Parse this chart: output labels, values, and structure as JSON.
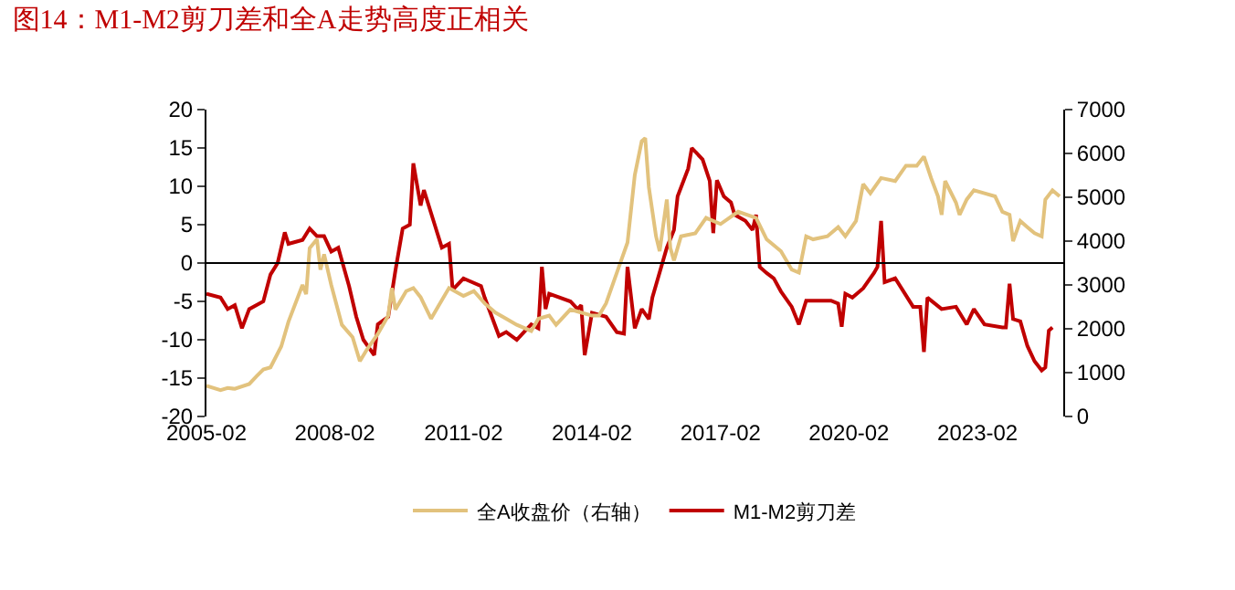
{
  "chart_data": {
    "type": "line",
    "title": "图14：M1-M2剪刀差和全A走势高度正相关",
    "xlim": [
      "2005-02",
      "2025-02"
    ],
    "xticks": [
      "2005-02",
      "2008-02",
      "2011-02",
      "2014-02",
      "2017-02",
      "2020-02",
      "2023-02"
    ],
    "ylim": [
      -20,
      20
    ],
    "yticks": [
      -20,
      -15,
      -10,
      -5,
      0,
      5,
      10,
      15,
      20
    ],
    "y2lim": [
      0,
      7000
    ],
    "y2ticks": [
      0,
      1000,
      2000,
      3000,
      4000,
      5000,
      6000,
      7000
    ],
    "legend": "bottom",
    "grid": false,
    "line_style": "solid",
    "marker": "none",
    "ref_lines": [
      {
        "axis": "y",
        "value": 0,
        "color": "#000000"
      }
    ],
    "series": [
      {
        "name": "M1-M2剪刀差",
        "color": "#c00000",
        "x": [
          "2005-02",
          "2005-06",
          "2005-08",
          "2005-10",
          "2005-12",
          "2006-02",
          "2006-06",
          "2006-08",
          "2006-10",
          "2006-12",
          "2007-01",
          "2007-05",
          "2007-07",
          "2007-09",
          "2007-11",
          "2008-01",
          "2008-03",
          "2008-06",
          "2008-08",
          "2008-10",
          "2009-01",
          "2009-02",
          "2009-05",
          "2009-07",
          "2009-09",
          "2009-11",
          "2009-12",
          "2010-02",
          "2010-03",
          "2010-06",
          "2010-08",
          "2010-10",
          "2010-11",
          "2011-02",
          "2011-07",
          "2011-08",
          "2011-12",
          "2012-02",
          "2012-05",
          "2012-07",
          "2012-09",
          "2012-11",
          "2012-12",
          "2013-01",
          "2013-02",
          "2013-08",
          "2013-10",
          "2013-11",
          "2013-12",
          "2014-02",
          "2014-06",
          "2014-09",
          "2014-11",
          "2014-12",
          "2015-02",
          "2015-04",
          "2015-06",
          "2015-07",
          "2015-11",
          "2016-01",
          "2016-02",
          "2016-05",
          "2016-06",
          "2016-09",
          "2016-11",
          "2016-12",
          "2017-01",
          "2017-03",
          "2017-05",
          "2017-06",
          "2017-09",
          "2017-11",
          "2017-12",
          "2018-01",
          "2018-03",
          "2018-05",
          "2018-07",
          "2018-10",
          "2018-12",
          "2019-02",
          "2019-05",
          "2019-09",
          "2019-11",
          "2019-12",
          "2020-01",
          "2020-03",
          "2020-06",
          "2020-09",
          "2020-10",
          "2020-11",
          "2020-12",
          "2021-03",
          "2021-08",
          "2021-10",
          "2021-11",
          "2021-12",
          "2022-04",
          "2022-08",
          "2022-11",
          "2023-01",
          "2023-04",
          "2023-09",
          "2023-10",
          "2023-11",
          "2023-12",
          "2024-02",
          "2024-04",
          "2024-06",
          "2024-08",
          "2024-09",
          "2024-10",
          "2024-11"
        ],
        "values": [
          -4,
          -4.5,
          -6,
          -5.5,
          -8.5,
          -6,
          -5,
          -1.5,
          0,
          4,
          2.5,
          3,
          4.5,
          3.5,
          3.5,
          1.5,
          2,
          -3,
          -7,
          -10,
          -12,
          -8,
          -7,
          -1,
          4.5,
          5,
          13,
          7.5,
          9.5,
          5,
          2,
          2.5,
          -3.5,
          -2,
          -3,
          -4.5,
          -9.5,
          -9,
          -10,
          -9,
          -8,
          -8.5,
          -0.5,
          -6,
          -4,
          -5,
          -6,
          -5.5,
          -12,
          -6.5,
          -7,
          -9,
          -9.2,
          -0.5,
          -8.5,
          -6,
          -7.3,
          -4.5,
          2,
          4.3,
          8.7,
          12.3,
          15,
          13.5,
          10.7,
          3.9,
          10.8,
          8.7,
          7.9,
          6.3,
          5.5,
          4.3,
          6.3,
          -0.5,
          -1.3,
          -2,
          -3.7,
          -5.7,
          -8,
          -4.9,
          -4.9,
          -4.9,
          -5.3,
          -8.3,
          -4,
          -4.5,
          -3.3,
          -1.3,
          -0.5,
          5.5,
          -2.5,
          -2,
          -5.7,
          -5.7,
          -11.6,
          -4.5,
          -6,
          -5.7,
          -8,
          -6,
          -8,
          -8.4,
          -8.4,
          -2.7,
          -7.3,
          -7.6,
          -10.8,
          -12.8,
          -14,
          -13.6,
          -8.8,
          -8.4
        ]
      },
      {
        "name": "全A收盘价（右轴）",
        "color": "#e2c27d",
        "axis": "y2",
        "x": [
          "2005-02",
          "2005-06",
          "2005-08",
          "2005-10",
          "2006-02",
          "2006-04",
          "2006-06",
          "2006-08",
          "2006-11",
          "2007-01",
          "2007-05",
          "2007-06",
          "2007-07",
          "2007-09",
          "2007-10",
          "2007-11",
          "2008-01",
          "2008-04",
          "2008-07",
          "2008-09",
          "2008-11",
          "2009-02",
          "2009-05",
          "2009-06",
          "2009-07",
          "2009-10",
          "2009-12",
          "2010-02",
          "2010-05",
          "2010-07",
          "2010-10",
          "2011-02",
          "2011-05",
          "2011-08",
          "2011-11",
          "2012-02",
          "2012-05",
          "2012-09",
          "2012-11",
          "2013-02",
          "2013-04",
          "2013-08",
          "2013-11",
          "2014-02",
          "2014-04",
          "2014-06",
          "2014-09",
          "2014-12",
          "2015-02",
          "2015-04",
          "2015-05",
          "2015-06",
          "2015-08",
          "2015-09",
          "2015-11",
          "2015-12",
          "2016-01",
          "2016-03",
          "2016-07",
          "2016-10",
          "2017-02",
          "2017-07",
          "2017-12",
          "2018-03",
          "2018-07",
          "2018-10",
          "2018-12",
          "2019-02",
          "2019-04",
          "2019-08",
          "2019-11",
          "2020-01",
          "2020-04",
          "2020-06",
          "2020-08",
          "2020-11",
          "2021-03",
          "2021-06",
          "2021-09",
          "2021-11",
          "2022-01",
          "2022-03",
          "2022-04",
          "2022-05",
          "2022-08",
          "2022-09",
          "2022-11",
          "2023-01",
          "2023-04",
          "2023-07",
          "2023-09",
          "2023-11",
          "2023-12",
          "2024-02",
          "2024-04",
          "2024-06",
          "2024-08",
          "2024-09",
          "2024-11",
          "2025-01"
        ],
        "values": [
          700,
          600,
          650,
          630,
          740,
          910,
          1070,
          1120,
          1600,
          2160,
          3000,
          2790,
          3840,
          4040,
          3350,
          3700,
          3000,
          2090,
          1810,
          1260,
          1530,
          1880,
          2300,
          2930,
          2440,
          2860,
          2930,
          2720,
          2230,
          2510,
          2930,
          2750,
          2860,
          2580,
          2370,
          2230,
          2090,
          1950,
          2230,
          2300,
          2090,
          2440,
          2370,
          2300,
          2300,
          2580,
          3280,
          3970,
          5510,
          6280,
          6350,
          5230,
          4110,
          3770,
          4950,
          3840,
          3560,
          4110,
          4180,
          4530,
          4390,
          4670,
          4530,
          4040,
          3770,
          3350,
          3280,
          4110,
          4040,
          4110,
          4320,
          4110,
          4460,
          5300,
          5090,
          5440,
          5370,
          5720,
          5720,
          5930,
          5440,
          5020,
          4600,
          5370,
          4880,
          4600,
          4950,
          5160,
          5090,
          5020,
          4670,
          4600,
          4000,
          4460,
          4320,
          4180,
          4110,
          4950,
          5160,
          5020
        ]
      }
    ]
  }
}
